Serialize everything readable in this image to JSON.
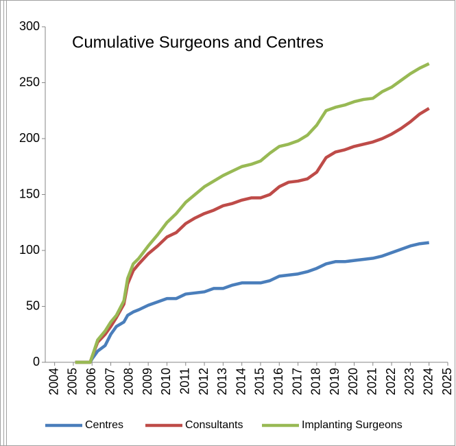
{
  "chart_data": {
    "type": "line",
    "title": "Cumulative Surgeons and Centres",
    "x": [
      2005.1,
      2005.9,
      2006.0,
      2006.3,
      2006.7,
      2007.0,
      2007.3,
      2007.7,
      2007.9,
      2008.2,
      2008.5,
      2009.0,
      2009.5,
      2010.0,
      2010.5,
      2011.0,
      2011.5,
      2012.0,
      2012.5,
      2013.0,
      2013.5,
      2014.0,
      2014.5,
      2015.0,
      2015.5,
      2016.0,
      2016.5,
      2017.0,
      2017.5,
      2018.0,
      2018.5,
      2019.0,
      2019.5,
      2020.0,
      2020.5,
      2021.0,
      2021.5,
      2022.0,
      2022.5,
      2023.0,
      2023.5,
      2024.0
    ],
    "series": [
      {
        "name": "Centres",
        "color": "#4a7ebb",
        "values": [
          0,
          0,
          3,
          10,
          15,
          25,
          32,
          36,
          42,
          45,
          47,
          51,
          54,
          57,
          57,
          61,
          62,
          63,
          66,
          66,
          69,
          71,
          71,
          71,
          73,
          77,
          78,
          79,
          81,
          84,
          88,
          90,
          90,
          91,
          92,
          93,
          95,
          98,
          101,
          104,
          106,
          107
        ]
      },
      {
        "name": "Consultants",
        "color": "#be4b48",
        "values": [
          0,
          0,
          5,
          18,
          25,
          32,
          40,
          52,
          70,
          82,
          88,
          97,
          104,
          112,
          116,
          124,
          129,
          133,
          136,
          140,
          142,
          145,
          147,
          147,
          150,
          157,
          161,
          162,
          164,
          170,
          183,
          188,
          190,
          193,
          195,
          197,
          200,
          204,
          209,
          215,
          222,
          227
        ]
      },
      {
        "name": "Implanting Surgeons",
        "color": "#98b954",
        "values": [
          0,
          0,
          5,
          20,
          28,
          36,
          42,
          55,
          75,
          88,
          93,
          104,
          114,
          125,
          133,
          143,
          150,
          157,
          162,
          167,
          171,
          175,
          177,
          180,
          187,
          193,
          195,
          198,
          203,
          212,
          225,
          228,
          230,
          233,
          235,
          236,
          242,
          246,
          252,
          258,
          263,
          267
        ]
      }
    ],
    "xlim": [
      2003.5,
      2025
    ],
    "xticks": [
      2004,
      2005,
      2006,
      2007,
      2008,
      2009,
      2010,
      2011,
      2012,
      2013,
      2014,
      2015,
      2016,
      2017,
      2018,
      2019,
      2020,
      2021,
      2022,
      2023,
      2024,
      2025
    ],
    "ylim": [
      0,
      300
    ],
    "yticks": [
      0,
      50,
      100,
      150,
      200,
      250,
      300
    ],
    "grid": false,
    "legend": "bottom"
  }
}
